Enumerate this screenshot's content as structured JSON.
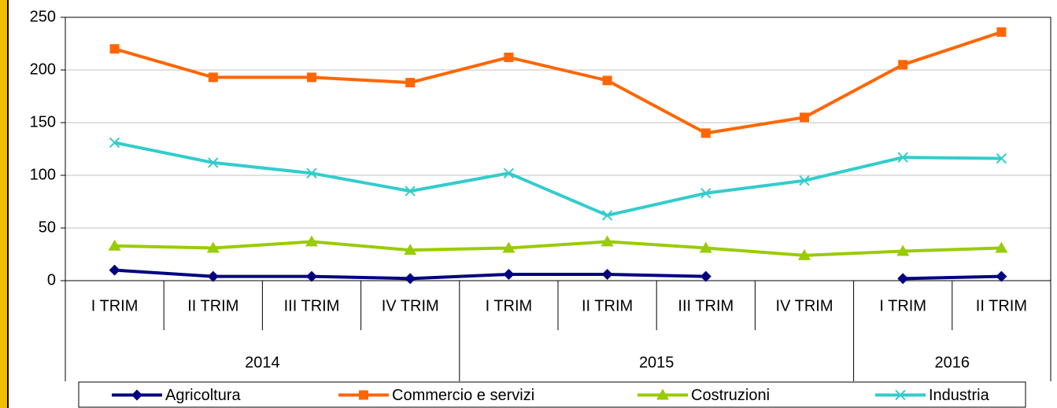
{
  "chart_data": {
    "type": "line",
    "categories": [
      "I TRIM",
      "II TRIM",
      "III TRIM",
      "IV  TRIM",
      "I TRIM",
      "II TRIM",
      "III TRIM",
      "IV  TRIM",
      "I TRIM",
      "II TRIM"
    ],
    "groups": [
      {
        "label": "2014",
        "count": 4
      },
      {
        "label": "2015",
        "count": 4
      },
      {
        "label": "2016",
        "count": 2
      }
    ],
    "series": [
      {
        "name": "Agricoltura",
        "color": "#000080",
        "marker": "diamond",
        "values": [
          10,
          4,
          4,
          2,
          6,
          6,
          4,
          null,
          2,
          4
        ]
      },
      {
        "name": "Commercio e servizi",
        "color": "#ff6600",
        "marker": "square",
        "values": [
          220,
          193,
          193,
          188,
          212,
          190,
          140,
          155,
          205,
          236
        ]
      },
      {
        "name": "Costruzioni",
        "color": "#99cc00",
        "marker": "triangle",
        "values": [
          33,
          31,
          37,
          29,
          31,
          37,
          31,
          24,
          28,
          31
        ]
      },
      {
        "name": "Industria",
        "color": "#33cccc",
        "marker": "x",
        "values": [
          131,
          112,
          102,
          85,
          102,
          62,
          83,
          95,
          117,
          116
        ]
      }
    ],
    "ylim": [
      0,
      250
    ],
    "yticks": [
      0,
      50,
      100,
      150,
      200,
      250
    ],
    "grid": true,
    "legend": "bottom"
  }
}
